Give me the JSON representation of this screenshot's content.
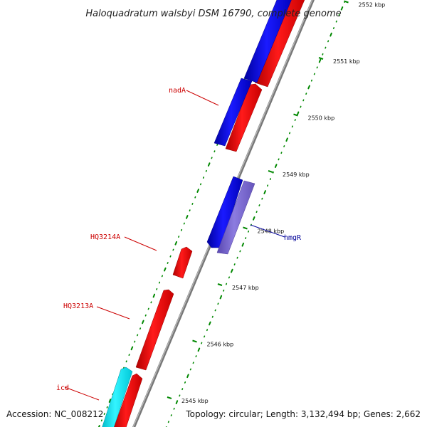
{
  "title": "Haloquadratum walsbyi DSM 16790, complete genome",
  "footer": {
    "accession": "Accession: NC_008212",
    "topology": "Topology: circular; Length: 3,132,494 bp; Genes: 2,662"
  },
  "scale": {
    "unit": "kbp",
    "ticks": [
      {
        "kbp": 2545,
        "label": "2545 kbp"
      },
      {
        "kbp": 2546,
        "label": "2546 kbp"
      },
      {
        "kbp": 2547,
        "label": "2547 kbp"
      },
      {
        "kbp": 2548,
        "label": "2548 kbp"
      },
      {
        "kbp": 2549,
        "label": "2549 kbp"
      },
      {
        "kbp": 2550,
        "label": "2550 kbp"
      },
      {
        "kbp": 2551,
        "label": "2551 kbp"
      },
      {
        "kbp": 2552,
        "label": "2552 kbp"
      }
    ]
  },
  "genes": [
    {
      "name": "icd",
      "label_color": "#cc0000"
    },
    {
      "name": "HQ3213A",
      "label_color": "#cc0000"
    },
    {
      "name": "HQ3214A",
      "label_color": "#cc0000"
    },
    {
      "name": "hmgR",
      "label_color": "#000099"
    },
    {
      "name": "nadA",
      "label_color": "#cc0000"
    }
  ],
  "colors": {
    "forward_cds": "#ff0000",
    "reverse_cds": "#0000ee",
    "cyan_feature": "#00e5f0",
    "hmgR_feature": "#7766cc",
    "backbone": "#888888",
    "tick_marks": "#008800"
  }
}
